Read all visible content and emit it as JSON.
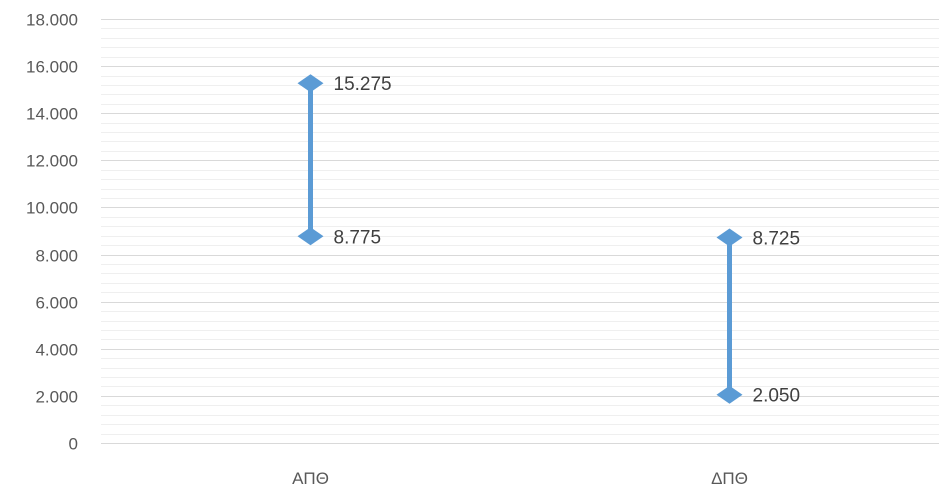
{
  "chart_data": {
    "type": "line",
    "title": "",
    "xlabel": "",
    "ylabel": "",
    "categories": [
      "ΑΠΘ",
      "ΔΠΘ"
    ],
    "series": [
      {
        "values": [
          15275,
          8725
        ],
        "labels": [
          "15.275",
          "8.725"
        ]
      },
      {
        "values": [
          8775,
          2050
        ],
        "labels": [
          "8.775",
          "2.050"
        ]
      }
    ],
    "high_low_lines": true,
    "ylim": [
      0,
      18000
    ],
    "major_step": 2000,
    "minor_step": 400,
    "y_tick_labels": [
      "0",
      "2.000",
      "4.000",
      "6.000",
      "8.000",
      "10.000",
      "12.000",
      "14.000",
      "16.000",
      "18.000"
    ],
    "grid": "major and minor horizontal",
    "legend": "none",
    "marker": "diamond",
    "colors": {
      "series": "#5b9bd5",
      "high_low_line": "#5b9bd5",
      "major_grid": "#d9d9d9",
      "minor_grid": "#efefef",
      "axis": "#d9d9d9"
    }
  }
}
